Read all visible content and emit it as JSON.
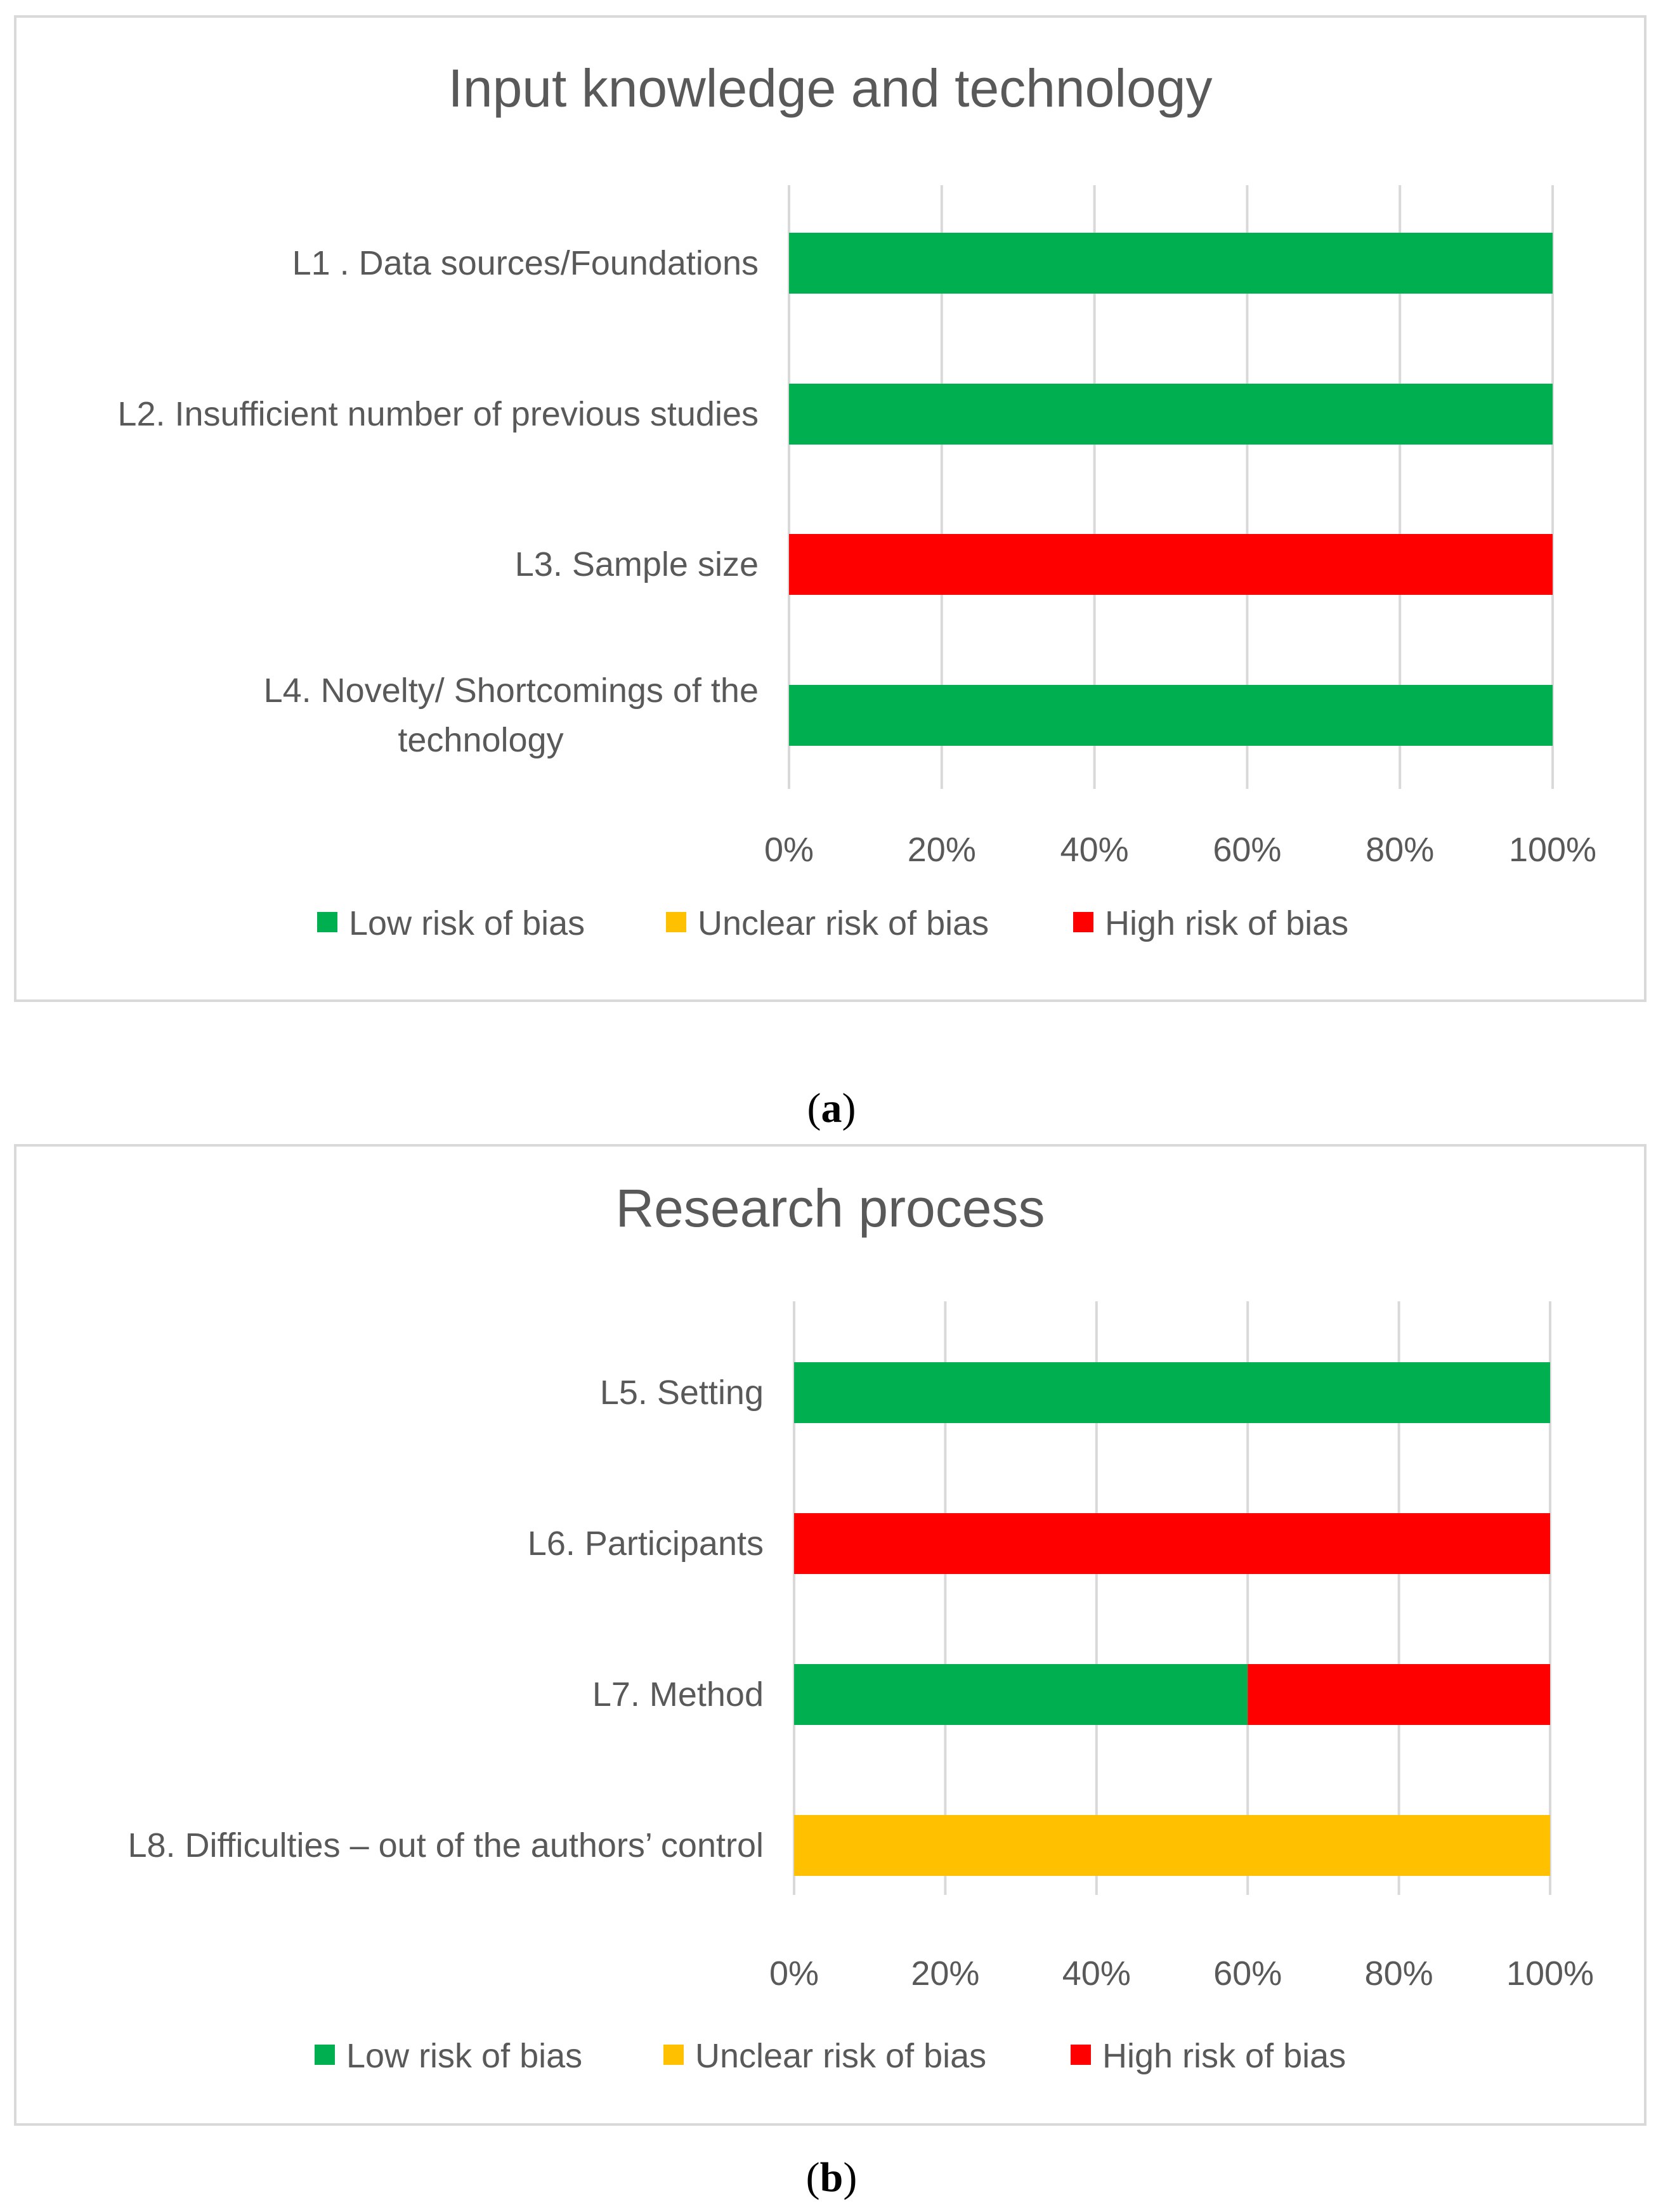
{
  "chart_data": [
    {
      "type": "bar",
      "orientation": "horizontal",
      "stacked": true,
      "percent": true,
      "title": "Input knowledge and technology",
      "categories": [
        [
          "L1 . Data sources/Foundations"
        ],
        [
          "L2. Insufficient number of previous studies"
        ],
        [
          "L3. Sample size"
        ],
        [
          "L4. Novelty/ Shortcomings of the",
          "technology"
        ]
      ],
      "series": [
        {
          "name": "Low risk of bias",
          "color": "#00b050",
          "values": [
            100,
            100,
            0,
            100
          ]
        },
        {
          "name": "Unclear risk of bias",
          "color": "#ffc000",
          "values": [
            0,
            0,
            0,
            0
          ]
        },
        {
          "name": "High risk of bias",
          "color": "#ff0000",
          "values": [
            0,
            0,
            100,
            0
          ]
        }
      ],
      "xticks": [
        "0%",
        "20%",
        "40%",
        "60%",
        "80%",
        "100%"
      ],
      "xlim": [
        0,
        100
      ],
      "grid": true,
      "legend": "bottom",
      "caption_open": "(",
      "caption_sub": "a",
      "caption_close": ")"
    },
    {
      "type": "bar",
      "orientation": "horizontal",
      "stacked": true,
      "percent": true,
      "title": "Research process",
      "categories": [
        [
          "L5. Setting"
        ],
        [
          "L6. Participants"
        ],
        [
          "L7. Method"
        ],
        [
          "L8. Difficulties – out of the authors’ control"
        ]
      ],
      "series": [
        {
          "name": "Low risk of bias",
          "color": "#00b050",
          "values": [
            100,
            0,
            60,
            0
          ]
        },
        {
          "name": "Unclear risk of bias",
          "color": "#ffc000",
          "values": [
            0,
            0,
            0,
            100
          ]
        },
        {
          "name": "High risk of bias",
          "color": "#ff0000",
          "values": [
            0,
            100,
            40,
            0
          ]
        }
      ],
      "xticks": [
        "0%",
        "20%",
        "40%",
        "60%",
        "80%",
        "100%"
      ],
      "xlim": [
        0,
        100
      ],
      "grid": true,
      "legend": "bottom",
      "caption_open": "(",
      "caption_sub": "b",
      "caption_close": ")"
    }
  ]
}
